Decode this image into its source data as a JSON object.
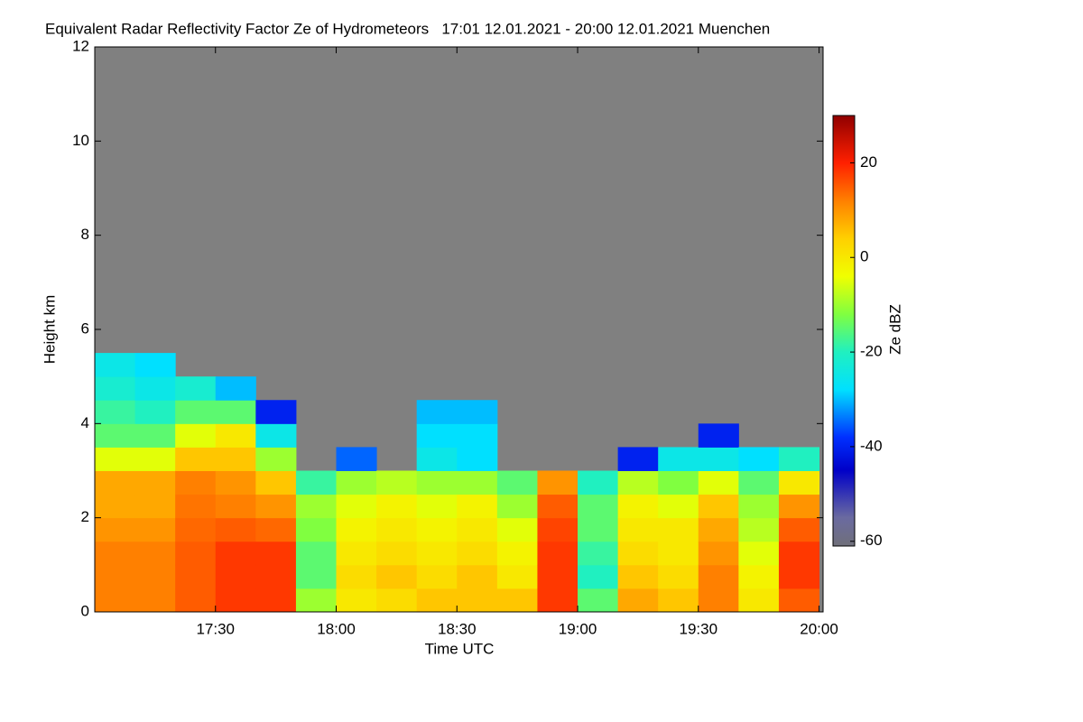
{
  "chart_data": {
    "type": "heatmap",
    "title": "Equivalent Radar Reflectivity Factor Ze of Hydrometeors   17:01 12.01.2021 - 20:00 12.01.2021 Muenchen",
    "xlabel": "Time UTC",
    "ylabel": "Height km",
    "colorbar_label": "Ze dBZ",
    "xlim": [
      "17:00",
      "20:01"
    ],
    "xticks": [
      "17:30",
      "18:00",
      "18:30",
      "19:00",
      "19:30",
      "20:00"
    ],
    "ylim": [
      0,
      12
    ],
    "yticks": [
      0,
      2,
      4,
      6,
      8,
      10,
      12
    ],
    "clim": [
      -61,
      30
    ],
    "cticks": [
      -60,
      -40,
      -20,
      0,
      20
    ],
    "background": "#808080",
    "colorscale": [
      {
        "value": -61,
        "color": "#70707a"
      },
      {
        "value": -55,
        "color": "#6a6aa0"
      },
      {
        "value": -45,
        "color": "#0000c8"
      },
      {
        "value": -38,
        "color": "#0030ff"
      },
      {
        "value": -28,
        "color": "#00e0ff"
      },
      {
        "value": -20,
        "color": "#20f0c0"
      },
      {
        "value": -12,
        "color": "#80ff40"
      },
      {
        "value": -4,
        "color": "#f0ff00"
      },
      {
        "value": 4,
        "color": "#ffd000"
      },
      {
        "value": 12,
        "color": "#ff8000"
      },
      {
        "value": 20,
        "color": "#ff2000"
      },
      {
        "value": 30,
        "color": "#900000"
      }
    ],
    "x": [
      "17:05",
      "17:15",
      "17:25",
      "17:35",
      "17:45",
      "17:55",
      "18:05",
      "18:15",
      "18:25",
      "18:35",
      "18:45",
      "18:55",
      "19:05",
      "19:15",
      "19:25",
      "19:35",
      "19:45",
      "19:55"
    ],
    "y": [
      0.25,
      0.75,
      1.25,
      1.75,
      2.25,
      2.75,
      3.25,
      3.75,
      4.25,
      4.75,
      5.25
    ],
    "values": [
      [
        12,
        12,
        12,
        10,
        8,
        8,
        -5,
        -15,
        -18,
        -22,
        -25
      ],
      [
        12,
        12,
        12,
        10,
        8,
        8,
        -5,
        -15,
        -20,
        -25,
        -28
      ],
      [
        15,
        15,
        15,
        14,
        13,
        12,
        5,
        -5,
        -15,
        -22,
        null
      ],
      [
        18,
        18,
        18,
        15,
        12,
        10,
        5,
        0,
        -15,
        -30,
        null
      ],
      [
        18,
        18,
        18,
        14,
        10,
        5,
        -10,
        -25,
        -40,
        null,
        null
      ],
      [
        -10,
        -15,
        -15,
        -12,
        -10,
        -18,
        null,
        null,
        null,
        null,
        null
      ],
      [
        0,
        2,
        0,
        -2,
        -5,
        -10,
        -35,
        null,
        null,
        null,
        null
      ],
      [
        2,
        5,
        2,
        0,
        -2,
        -8,
        null,
        null,
        null,
        null,
        null
      ],
      [
        5,
        2,
        0,
        -2,
        -5,
        -10,
        -25,
        -28,
        -30,
        null,
        null
      ],
      [
        5,
        5,
        2,
        0,
        -2,
        -10,
        -28,
        -28,
        -30,
        null,
        null
      ],
      [
        5,
        0,
        -2,
        -5,
        -10,
        -15,
        null,
        null,
        null,
        null,
        null
      ],
      [
        18,
        18,
        18,
        17,
        15,
        10,
        null,
        null,
        null,
        null,
        null
      ],
      [
        -15,
        -20,
        -18,
        -15,
        -15,
        -20,
        null,
        null,
        null,
        null,
        null
      ],
      [
        8,
        5,
        2,
        0,
        -2,
        -8,
        -40,
        null,
        null,
        null,
        null
      ],
      [
        5,
        2,
        0,
        0,
        -5,
        -12,
        -25,
        null,
        null,
        null,
        null
      ],
      [
        12,
        12,
        10,
        8,
        5,
        -5,
        -25,
        -40,
        null,
        null,
        null
      ],
      [
        0,
        -2,
        -5,
        -8,
        -10,
        -15,
        -28,
        null,
        null,
        null,
        null
      ],
      [
        15,
        18,
        18,
        15,
        10,
        0,
        -20,
        null,
        null,
        null,
        null
      ]
    ]
  }
}
